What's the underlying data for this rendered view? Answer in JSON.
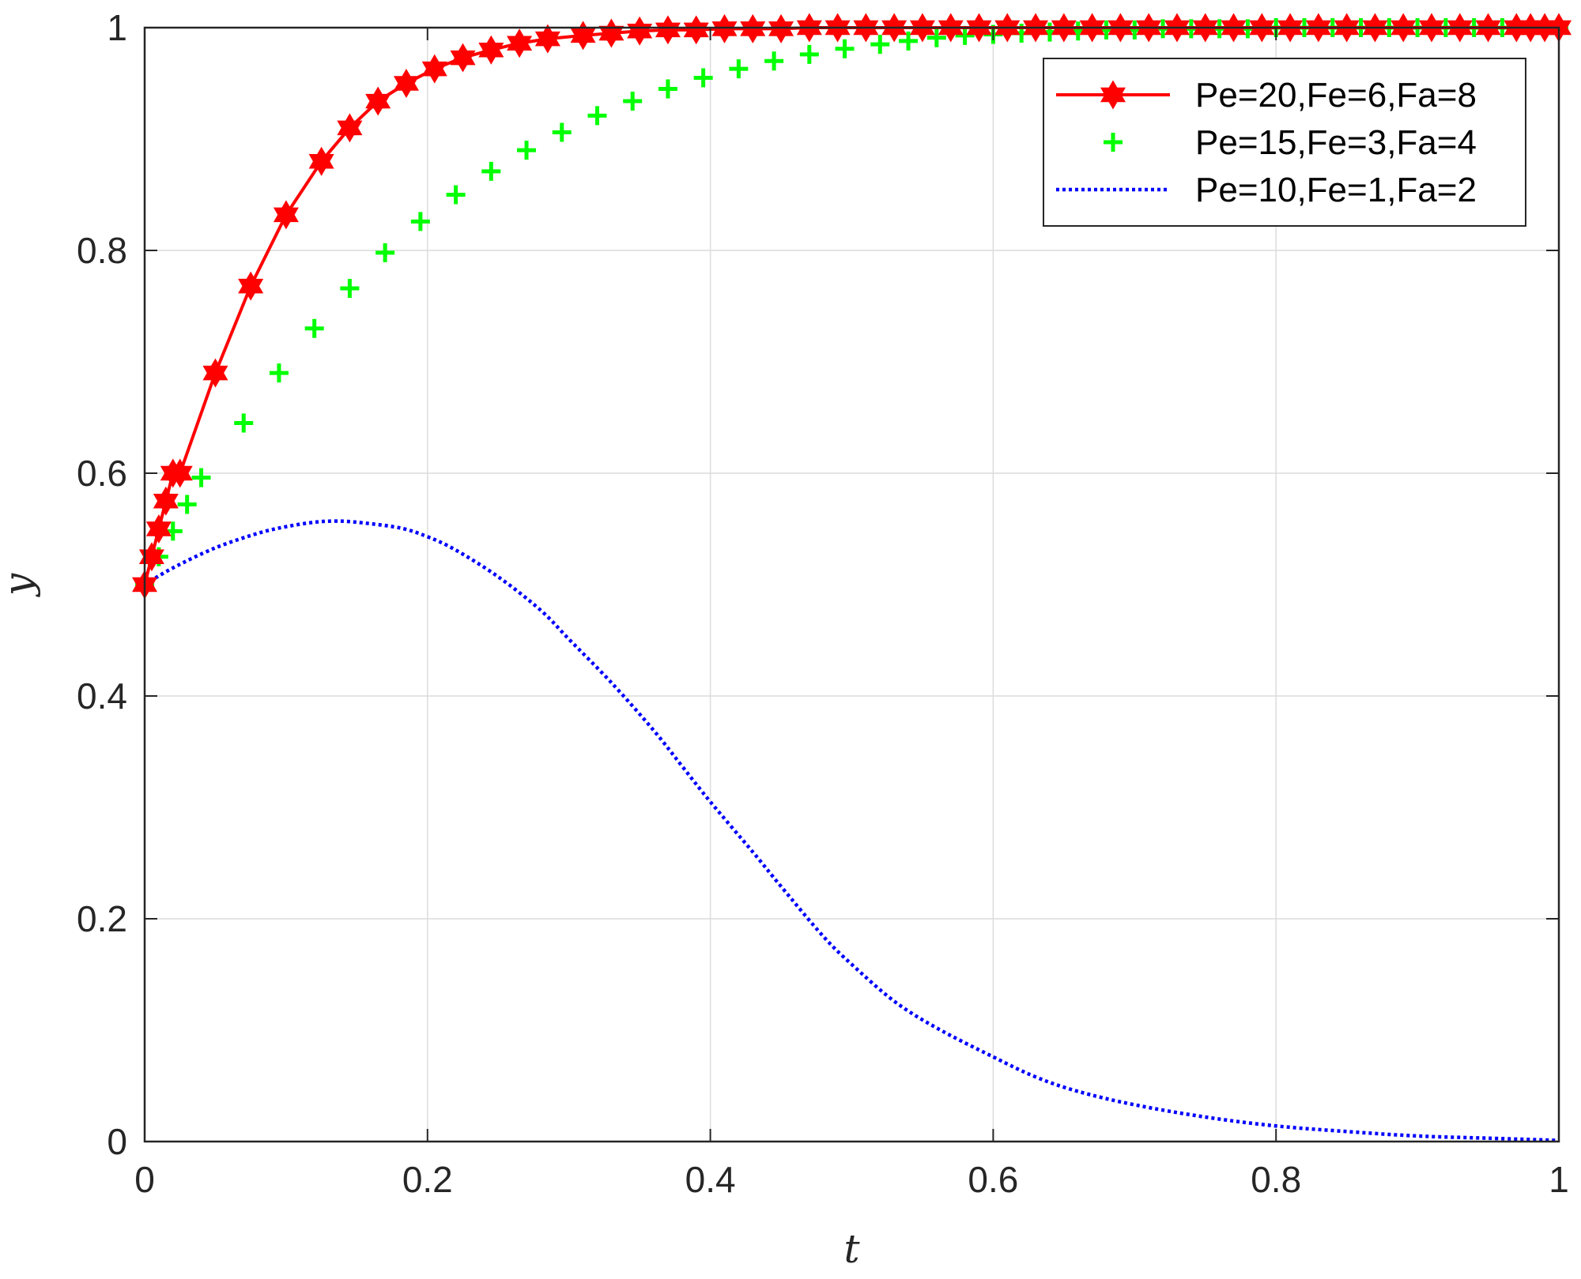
{
  "chart_data": {
    "type": "line",
    "title": "",
    "xlabel": "t",
    "ylabel": "y",
    "xlim": [
      0,
      1
    ],
    "ylim": [
      0,
      1
    ],
    "xticks": [
      0,
      0.2,
      0.4,
      0.6,
      0.8,
      1
    ],
    "yticks": [
      0,
      0.2,
      0.4,
      0.6,
      0.8,
      1
    ],
    "xtick_labels": [
      "0",
      "0.2",
      "0.4",
      "0.6",
      "0.8",
      "1"
    ],
    "ytick_labels": [
      "0",
      "0.2",
      "0.4",
      "0.6",
      "0.8",
      "1"
    ],
    "grid": true,
    "legend_position": "top-right",
    "series": [
      {
        "name": "Pe=20,Fe=6,Fa=8",
        "color": "#ff0000",
        "line_style": "solid",
        "marker": "hexagram",
        "x": [
          0,
          0.005,
          0.01,
          0.015,
          0.02,
          0.025,
          0.05,
          0.075,
          0.1,
          0.125,
          0.145,
          0.165,
          0.185,
          0.205,
          0.225,
          0.245,
          0.265,
          0.285,
          0.31,
          0.33,
          0.35,
          0.37,
          0.39,
          0.41,
          0.43,
          0.45,
          0.47,
          0.49,
          0.51,
          0.53,
          0.55,
          0.57,
          0.59,
          0.61,
          0.63,
          0.65,
          0.67,
          0.69,
          0.71,
          0.73,
          0.75,
          0.77,
          0.79,
          0.81,
          0.83,
          0.85,
          0.87,
          0.89,
          0.91,
          0.93,
          0.95,
          0.97,
          0.98,
          0.99,
          1.0
        ],
        "y": [
          0.5,
          0.525,
          0.55,
          0.575,
          0.6,
          0.6,
          0.69,
          0.768,
          0.832,
          0.88,
          0.91,
          0.934,
          0.95,
          0.963,
          0.973,
          0.98,
          0.986,
          0.99,
          0.993,
          0.995,
          0.997,
          0.998,
          0.998,
          0.999,
          0.999,
          0.999,
          1.0,
          1.0,
          1.0,
          1.0,
          1.0,
          1.0,
          1.0,
          1.0,
          1.0,
          1.0,
          1.0,
          1.0,
          1.0,
          1.0,
          1.0,
          1.0,
          1.0,
          1.0,
          1.0,
          1.0,
          1.0,
          1.0,
          1.0,
          1.0,
          1.0,
          1.0,
          1.0,
          1.0,
          1.0
        ]
      },
      {
        "name": "Pe=15,Fe=3,Fa=4",
        "color": "#00ff00",
        "line_style": "none",
        "marker": "plus",
        "x": [
          0,
          0.01,
          0.02,
          0.03,
          0.04,
          0.07,
          0.095,
          0.12,
          0.145,
          0.17,
          0.195,
          0.22,
          0.245,
          0.27,
          0.295,
          0.32,
          0.345,
          0.37,
          0.395,
          0.42,
          0.445,
          0.47,
          0.495,
          0.52,
          0.54,
          0.56,
          0.58,
          0.6,
          0.62,
          0.64,
          0.66,
          0.68,
          0.7,
          0.72,
          0.74,
          0.76,
          0.78,
          0.8,
          0.82,
          0.84,
          0.86,
          0.88,
          0.9,
          0.92,
          0.94,
          0.96,
          0.97,
          0.98,
          0.99,
          1.0
        ],
        "y": [
          0.5,
          0.525,
          0.548,
          0.572,
          0.596,
          0.645,
          0.69,
          0.73,
          0.766,
          0.798,
          0.826,
          0.85,
          0.871,
          0.89,
          0.906,
          0.921,
          0.934,
          0.945,
          0.955,
          0.963,
          0.97,
          0.976,
          0.981,
          0.985,
          0.988,
          0.991,
          0.993,
          0.994,
          0.995,
          0.996,
          0.997,
          0.998,
          0.998,
          0.999,
          0.999,
          0.999,
          0.999,
          1.0,
          1.0,
          1.0,
          1.0,
          1.0,
          1.0,
          1.0,
          1.0,
          1.0,
          1.0,
          1.0,
          1.0,
          1.0
        ]
      },
      {
        "name": "Pe=10,Fe=1,Fa=2",
        "color": "#0000ff",
        "line_style": "dotted",
        "marker": "none",
        "x": [
          0,
          0.02,
          0.05,
          0.08,
          0.1,
          0.12,
          0.135,
          0.15,
          0.18,
          0.2,
          0.22,
          0.25,
          0.28,
          0.3,
          0.33,
          0.36,
          0.38,
          0.4,
          0.43,
          0.45,
          0.48,
          0.5,
          0.53,
          0.56,
          0.6,
          0.63,
          0.66,
          0.7,
          0.75,
          0.8,
          0.85,
          0.9,
          0.95,
          1.0
        ],
        "y": [
          0.5,
          0.515,
          0.533,
          0.546,
          0.552,
          0.556,
          0.557,
          0.556,
          0.551,
          0.543,
          0.531,
          0.507,
          0.477,
          0.451,
          0.412,
          0.369,
          0.337,
          0.305,
          0.26,
          0.229,
          0.184,
          0.159,
          0.126,
          0.102,
          0.076,
          0.058,
          0.045,
          0.033,
          0.022,
          0.014,
          0.009,
          0.005,
          0.003,
          0.001
        ]
      }
    ]
  }
}
